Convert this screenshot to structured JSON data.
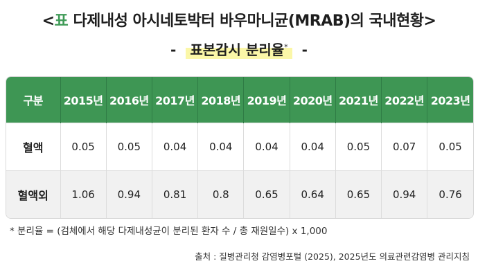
{
  "title": {
    "open_bracket": "<",
    "accent": "표",
    "text": " 다제내성 아시네토박터 바우마니균(MRAB)의 국내현황",
    "close_bracket": ">"
  },
  "subtitle": {
    "dash_left": "-",
    "text": "표본감시 분리율",
    "mark": "*",
    "dash_right": "-"
  },
  "table": {
    "corner": "구분",
    "columns": [
      "2015년",
      "2016년",
      "2017년",
      "2018년",
      "2019년",
      "2020년",
      "2021년",
      "2022년",
      "2023년"
    ],
    "rows": [
      {
        "label": "혈액",
        "values": [
          "0.05",
          "0.05",
          "0.04",
          "0.04",
          "0.04",
          "0.04",
          "0.05",
          "0.07",
          "0.05"
        ]
      },
      {
        "label": "혈액외",
        "values": [
          "1.06",
          "0.94",
          "0.81",
          "0.8",
          "0.65",
          "0.64",
          "0.65",
          "0.94",
          "0.76"
        ]
      }
    ]
  },
  "footnote": "* 분리율 = (검체에서 해당 다제내성균이 분리된 환자 수 / 총 재원일수) x 1,000",
  "source": "출처 : 질병관리청 감염병포털 (2025), 2025년도 의료관련감염병 관리지침",
  "colors": {
    "accent_green": "#3e9654",
    "highlight_yellow": "#fbf7a8",
    "row_alt": "#f1f1f1"
  }
}
